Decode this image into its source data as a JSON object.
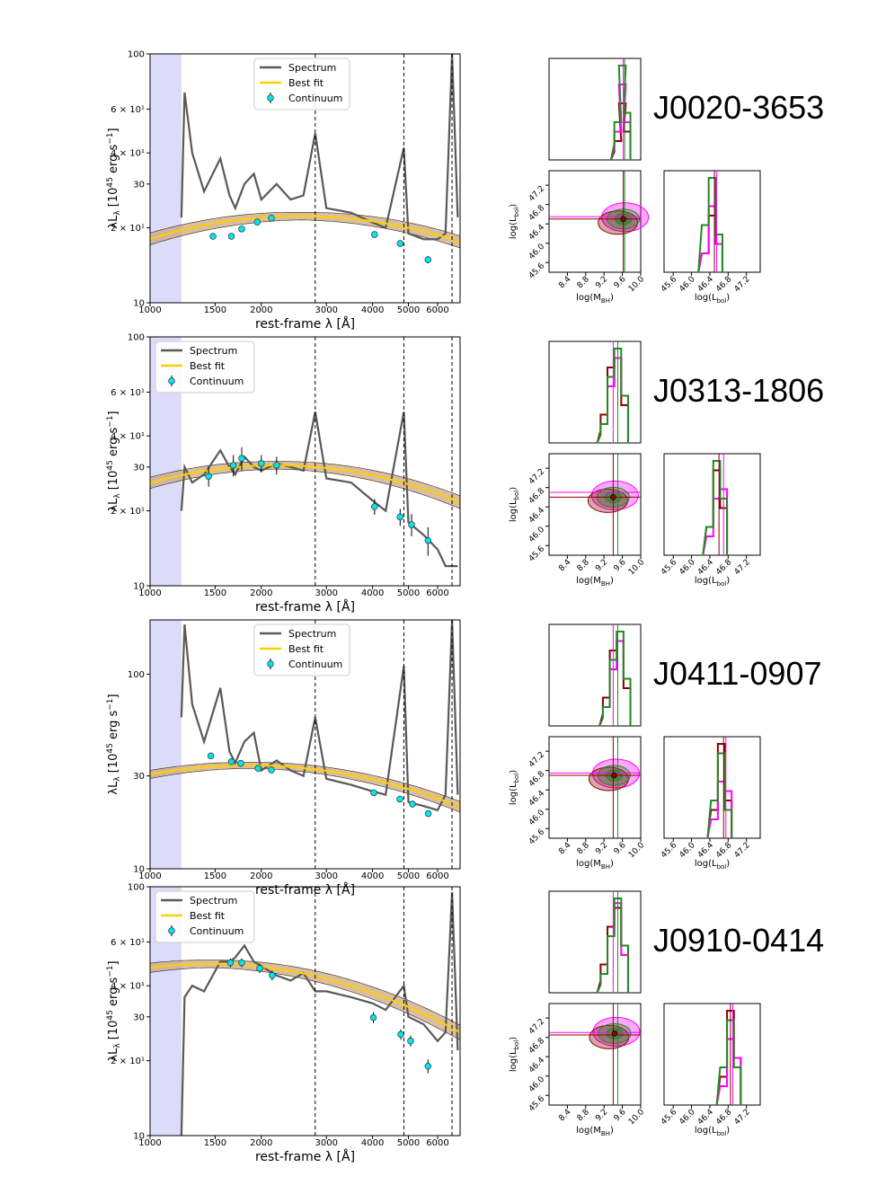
{
  "figure": {
    "sed_common": {
      "xlabel": "rest-frame λ [Å]",
      "ylabel_main": "λL",
      "ylabel_sub": "λ",
      "ylabel_unit": "[10",
      "ylabel_exp": "45",
      "ylabel_unit2": "erg s",
      "ylabel_exp2": "−1",
      "ylabel_close": "]",
      "x_ticks": [
        "1000",
        "1500",
        "2000",
        "3000",
        "4000",
        "5000",
        "6000"
      ],
      "x_tick_values": [
        1000,
        1500,
        2000,
        3000,
        4000,
        5000,
        6000
      ],
      "xlim": [
        1000,
        6900
      ],
      "x_scale": "log",
      "y_scale": "log",
      "shaded_region_angstrom": [
        1000,
        1216
      ],
      "vlines_angstrom": [
        2798,
        4861,
        6563
      ],
      "legend": [
        "Spectrum",
        "Best fit",
        "Continuum"
      ],
      "colors": {
        "spectrum": "#595959",
        "fit": "#ffd000",
        "band": "#c8a27a",
        "continuum": "#00e5ee",
        "shade": "#dcdcfa"
      }
    },
    "corner_common": {
      "xlabel_mbh": "log(M",
      "xlabel_mbh_sub": "BH",
      "xlabel_lbol": "log(L",
      "xlabel_lbol_sub": "bol",
      "ylabel_lbol": "log(L",
      "ylabel_lbol_sub": "bol",
      "mbh_ticks": [
        "8.4",
        "8.8",
        "9.2",
        "9.6",
        "10.0"
      ],
      "mbh_tick_values": [
        8.4,
        8.8,
        9.2,
        9.6,
        10.0
      ],
      "lbol_ticks": [
        "45.6",
        "46.0",
        "46.4",
        "46.8",
        "47.2"
      ],
      "lbol_tick_values": [
        45.6,
        46.0,
        46.4,
        46.8,
        47.2
      ],
      "mbh_range": [
        8.0,
        10.0
      ],
      "lbol_range": [
        45.4,
        47.5
      ],
      "colors": {
        "a": "#8b0000",
        "b": "#228b22",
        "c": "#ff00ff"
      }
    },
    "objects": [
      {
        "name": "J0020-3653",
        "chart_data": {
          "type": "line",
          "y_ticks": [
            "10",
            "2 × 10¹",
            "30",
            "4 × 10¹",
            "6 × 10¹",
            "100"
          ],
          "y_tick_values": [
            10,
            20,
            30,
            40,
            60,
            100
          ],
          "ylim": [
            10,
            100
          ],
          "legend_position": "top-center",
          "fit_peak": {
            "wavelength": 2550,
            "value": 22.3,
            "width": 0.55
          },
          "continuum": {
            "x": [
              1480,
              1660,
              1770,
              1950,
              2130,
              4050,
              4750,
              5650
            ],
            "y": [
              18.5,
              18.5,
              19.8,
              21.1,
              21.9,
              18.8,
              17.3,
              14.9
            ],
            "err": [
              0.5,
              0.5,
              0.5,
              0.5,
              0.5,
              0.5,
              0.5,
              0.5
            ]
          },
          "spectrum": {
            "x": [
              1216,
              1240,
              1300,
              1400,
              1549,
              1640,
              1700,
              1800,
              1909,
              2000,
              2200,
              2400,
              2600,
              2798,
              3000,
              3500,
              4000,
              4340,
              4861,
              5000,
              5500,
              6000,
              6300,
              6563,
              6800
            ],
            "y": [
              22,
              70,
              40,
              28,
              38,
              27,
              24,
              30,
              33,
              26,
              30,
              26,
              27,
              48,
              24,
              23,
              21,
              20,
              42,
              19,
              18,
              18,
              19,
              100,
              22
            ]
          }
        },
        "corner": {
          "hist_mbh": {
            "a": [
              0.2,
              0.6,
              0.3
            ],
            "b": [
              0.4,
              1.0,
              0.5
            ],
            "c": [
              0.3,
              0.8,
              0.4
            ],
            "centers": [
              9.5,
              9.6,
              9.7
            ]
          },
          "contour_center": [
            9.62,
            46.5
          ],
          "lines_mbh": [
            9.62,
            9.65
          ],
          "lines_lbol": [
            46.5,
            46.55
          ],
          "hist_lbol": {
            "a": [
              0.2,
              0.6,
              0.3
            ],
            "b": [
              0.5,
              1.0,
              0.4
            ],
            "c": [
              0.2,
              0.7,
              0.3
            ],
            "centers": [
              46.3,
              46.45,
              46.6
            ]
          }
        }
      },
      {
        "name": "J0313-1806",
        "chart_data": {
          "type": "line",
          "y_ticks": [
            "10",
            "2 × 10¹",
            "30",
            "4 × 10¹",
            "6 × 10¹",
            "100"
          ],
          "y_tick_values": [
            10,
            20,
            30,
            40,
            60,
            100
          ],
          "ylim": [
            10,
            100
          ],
          "legend_position": "top-left",
          "fit_peak": {
            "wavelength": 2200,
            "value": 30.5,
            "width": 0.6
          },
          "continuum": {
            "x": [
              1440,
              1680,
              1770,
              2000,
              2200,
              4050,
              4750,
              5100,
              5650
            ],
            "y": [
              27.5,
              30.5,
              32.5,
              31.0,
              30.5,
              20.8,
              18.9,
              17.6,
              15.2
            ],
            "err": [
              2.5,
              3.0,
              3.5,
              2.5,
              2.5,
              1.5,
              1.5,
              1.8,
              2.0
            ]
          },
          "spectrum": {
            "x": [
              1216,
              1240,
              1300,
              1400,
              1549,
              1640,
              1700,
              1800,
              1909,
              2000,
              2200,
              2400,
              2600,
              2798,
              3000,
              3500,
              4000,
              4340,
              4861,
              5000,
              5500,
              6000,
              6300,
              6563,
              6800
            ],
            "y": [
              20,
              30,
              26,
              28,
              35,
              30,
              28,
              33,
              30,
              29,
              31,
              30,
              29,
              50,
              27,
              26,
              22,
              20,
              50,
              18,
              16,
              14,
              12,
              12,
              12
            ]
          }
        },
        "corner": {
          "hist_mbh": {
            "a": [
              0.3,
              0.8,
              0.9,
              0.4
            ],
            "b": [
              0.2,
              0.7,
              1.0,
              0.5
            ],
            "c": [
              0.2,
              0.6,
              0.9,
              0.5
            ],
            "centers": [
              9.2,
              9.35,
              9.5,
              9.65
            ]
          },
          "contour_center": [
            9.4,
            46.6
          ],
          "lines_mbh": [
            9.4,
            9.5
          ],
          "lines_lbol": [
            46.6,
            46.7
          ],
          "hist_lbol": {
            "a": [
              0.3,
              0.9,
              0.5
            ],
            "b": [
              0.3,
              1.0,
              0.6
            ],
            "c": [
              0.2,
              0.6,
              0.7
            ],
            "centers": [
              46.4,
              46.55,
              46.7
            ]
          }
        }
      },
      {
        "name": "J0411-0907",
        "chart_data": {
          "type": "line",
          "y_ticks": [
            "10",
            "30",
            "100"
          ],
          "y_tick_values": [
            10,
            30,
            100
          ],
          "ylim": [
            10,
            190
          ],
          "legend_position": "top-center",
          "fit_peak": {
            "wavelength": 1850,
            "value": 34.0,
            "width": 0.65
          },
          "continuum": {
            "x": [
              1460,
              1660,
              1760,
              1960,
              2130,
              4030,
              4740,
              5130,
              5660
            ],
            "y": [
              38.0,
              35.5,
              34.8,
              32.8,
              32.2,
              24.6,
              22.8,
              21.5,
              19.2
            ],
            "err": [
              0.8,
              0.8,
              0.8,
              0.8,
              0.8,
              0.6,
              0.6,
              0.6,
              0.6
            ]
          },
          "spectrum": {
            "x": [
              1216,
              1240,
              1300,
              1400,
              1549,
              1640,
              1700,
              1800,
              1909,
              2000,
              2200,
              2400,
              2600,
              2798,
              3000,
              3500,
              4000,
              4340,
              4861,
              5000,
              5500,
              6000,
              6300,
              6563,
              6800
            ],
            "y": [
              60,
              180,
              70,
              45,
              85,
              40,
              35,
              45,
              50,
              32,
              36,
              32,
              30,
              60,
              29,
              27,
              25,
              24,
              110,
              22,
              21,
              20,
              24,
              190,
              24
            ]
          }
        },
        "corner": {
          "hist_mbh": {
            "a": [
              0.3,
              0.8,
              0.9,
              0.4
            ],
            "b": [
              0.2,
              0.7,
              1.0,
              0.5
            ],
            "c": [
              0.2,
              0.6,
              0.9,
              0.5
            ],
            "centers": [
              9.25,
              9.4,
              9.55,
              9.7
            ]
          },
          "contour_center": [
            9.42,
            46.7
          ],
          "lines_mbh": [
            9.4,
            9.5
          ],
          "lines_lbol": [
            46.7,
            46.75
          ],
          "hist_lbol": {
            "a": [
              0.3,
              1.0,
              0.4
            ],
            "b": [
              0.4,
              0.9,
              0.3
            ],
            "c": [
              0.2,
              0.6,
              0.5
            ],
            "centers": [
              46.5,
              46.65,
              46.8
            ]
          }
        }
      },
      {
        "name": "J0910-0414",
        "chart_data": {
          "type": "line",
          "y_ticks": [
            "10",
            "2 × 10¹",
            "30",
            "4 × 10¹",
            "6 × 10¹",
            "100"
          ],
          "y_tick_values": [
            10,
            20,
            30,
            40,
            60,
            100
          ],
          "ylim": [
            10,
            100
          ],
          "legend_position": "top-left",
          "fit_peak": {
            "wavelength": 1450,
            "value": 49.0,
            "width": 0.6
          },
          "continuum": {
            "x": [
              1650,
              1770,
              1980,
              2140,
              4020,
              4770,
              5070,
              5650
            ],
            "y": [
              49.5,
              49.5,
              47.0,
              44.0,
              29.8,
              25.5,
              24.0,
              19.0
            ],
            "err": [
              2.0,
              2.0,
              2.0,
              2.0,
              1.5,
              1.2,
              1.2,
              1.2
            ]
          },
          "spectrum": {
            "x": [
              1216,
              1240,
              1300,
              1400,
              1549,
              1640,
              1700,
              1800,
              1909,
              2000,
              2200,
              2400,
              2600,
              2798,
              3000,
              3500,
              4000,
              4340,
              4861,
              5000,
              5500,
              6000,
              6300,
              6563,
              6800
            ],
            "y": [
              10,
              36,
              40,
              38,
              50,
              50,
              52,
              58,
              50,
              48,
              44,
              42,
              45,
              38,
              38,
              36,
              34,
              32,
              40,
              30,
              28,
              24,
              26,
              95,
              22
            ]
          }
        },
        "corner": {
          "hist_mbh": {
            "a": [
              0.3,
              0.7,
              0.9,
              0.5
            ],
            "b": [
              0.2,
              0.6,
              1.0,
              0.5
            ],
            "c": [
              0.2,
              0.6,
              0.95,
              0.4
            ],
            "centers": [
              9.2,
              9.35,
              9.5,
              9.65
            ]
          },
          "contour_center": [
            9.43,
            46.88
          ],
          "lines_mbh": [
            9.4,
            9.5
          ],
          "lines_lbol": [
            46.85,
            46.9
          ],
          "hist_lbol": {
            "a": [
              0.3,
              1.0,
              0.5
            ],
            "b": [
              0.4,
              0.9,
              0.4
            ],
            "c": [
              0.2,
              0.7,
              0.5
            ],
            "centers": [
              46.7,
              46.85,
              47.0
            ]
          }
        }
      }
    ]
  }
}
